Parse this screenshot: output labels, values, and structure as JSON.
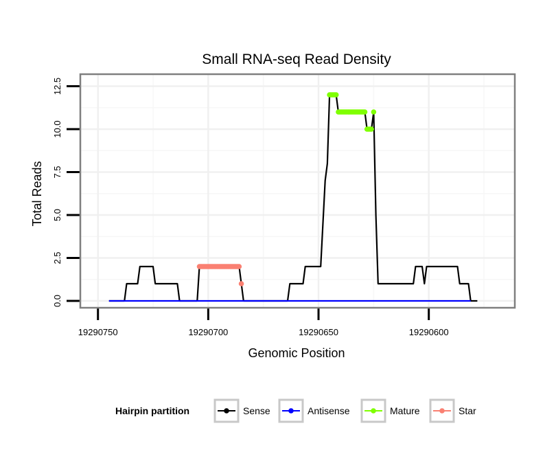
{
  "chart_data": {
    "type": "line",
    "title": "Small RNA-seq Read Density",
    "xlabel": "Genomic Position",
    "ylabel": "Total Reads",
    "xlim": [
      19290758,
      19290561
    ],
    "ylim": [
      -0.4,
      13.2
    ],
    "x_reversed": true,
    "x_ticks": [
      19290750,
      19290700,
      19290650,
      19290600
    ],
    "x_tick_labels": [
      "19290750",
      "19290700",
      "19290650",
      "19290600"
    ],
    "y_ticks": [
      0,
      2.5,
      5,
      7.5,
      10,
      12.5
    ],
    "y_tick_labels": [
      "0.0",
      "2.5",
      "5.0",
      "7.5",
      "10.0",
      "12.5"
    ],
    "grid": true,
    "legend": {
      "title": "Hairpin partition",
      "position": "bottom",
      "entries": [
        {
          "label": "Sense",
          "color": "#000000"
        },
        {
          "label": "Antisense",
          "color": "#0000ff"
        },
        {
          "label": "Mature",
          "color": "#7fff00"
        },
        {
          "label": "Star",
          "color": "#fa8072"
        }
      ]
    },
    "series": [
      {
        "name": "Sense",
        "color": "#000000",
        "style": "line",
        "points": [
          [
            19290745,
            0
          ],
          [
            19290738,
            0
          ],
          [
            19290737,
            1
          ],
          [
            19290732,
            1
          ],
          [
            19290731,
            2
          ],
          [
            19290725,
            2
          ],
          [
            19290724,
            1
          ],
          [
            19290714,
            1
          ],
          [
            19290713,
            0
          ],
          [
            19290705,
            0
          ],
          [
            19290704,
            2
          ],
          [
            19290686,
            2
          ],
          [
            19290685,
            1
          ],
          [
            19290684,
            0
          ],
          [
            19290664,
            0
          ],
          [
            19290663,
            1
          ],
          [
            19290657,
            1
          ],
          [
            19290656,
            2
          ],
          [
            19290649,
            2
          ],
          [
            19290647,
            7
          ],
          [
            19290646,
            8
          ],
          [
            19290645,
            12
          ],
          [
            19290642,
            12
          ],
          [
            19290641,
            11
          ],
          [
            19290629,
            11
          ],
          [
            19290628,
            10
          ],
          [
            19290626,
            10
          ],
          [
            19290625,
            11
          ],
          [
            19290624,
            5
          ],
          [
            19290623,
            1
          ],
          [
            19290607,
            1
          ],
          [
            19290606,
            2
          ],
          [
            19290603,
            2
          ],
          [
            19290602,
            1
          ],
          [
            19290601,
            2
          ],
          [
            19290587,
            2
          ],
          [
            19290586,
            1
          ],
          [
            19290582,
            1
          ],
          [
            19290581,
            0
          ],
          [
            19290578,
            0
          ]
        ]
      },
      {
        "name": "Antisense",
        "color": "#0000ff",
        "style": "line",
        "points": [
          [
            19290745,
            0
          ],
          [
            19290581,
            0
          ]
        ]
      },
      {
        "name": "Mature",
        "color": "#7fff00",
        "style": "points",
        "points": [
          [
            19290645,
            12
          ],
          [
            19290644.5,
            12
          ],
          [
            19290644,
            12
          ],
          [
            19290643.5,
            12
          ],
          [
            19290643,
            12
          ],
          [
            19290642.5,
            12
          ],
          [
            19290642,
            12
          ],
          [
            19290641,
            11
          ],
          [
            19290640.5,
            11
          ],
          [
            19290640,
            11
          ],
          [
            19290639.5,
            11
          ],
          [
            19290639,
            11
          ],
          [
            19290638.5,
            11
          ],
          [
            19290638,
            11
          ],
          [
            19290637.5,
            11
          ],
          [
            19290637,
            11
          ],
          [
            19290636.5,
            11
          ],
          [
            19290636,
            11
          ],
          [
            19290635.5,
            11
          ],
          [
            19290635,
            11
          ],
          [
            19290634.5,
            11
          ],
          [
            19290634,
            11
          ],
          [
            19290633.5,
            11
          ],
          [
            19290633,
            11
          ],
          [
            19290632.5,
            11
          ],
          [
            19290632,
            11
          ],
          [
            19290631.5,
            11
          ],
          [
            19290631,
            11
          ],
          [
            19290630.5,
            11
          ],
          [
            19290630,
            11
          ],
          [
            19290629.5,
            11
          ],
          [
            19290629,
            11
          ],
          [
            19290628,
            10
          ],
          [
            19290627.5,
            10
          ],
          [
            19290627,
            10
          ],
          [
            19290626.5,
            10
          ],
          [
            19290626,
            10
          ],
          [
            19290625,
            11
          ]
        ]
      },
      {
        "name": "Star",
        "color": "#fa8072",
        "style": "points",
        "points": [
          [
            19290704,
            2
          ],
          [
            19290703.5,
            2
          ],
          [
            19290703,
            2
          ],
          [
            19290702.5,
            2
          ],
          [
            19290702,
            2
          ],
          [
            19290701.5,
            2
          ],
          [
            19290701,
            2
          ],
          [
            19290700.5,
            2
          ],
          [
            19290700,
            2
          ],
          [
            19290699.5,
            2
          ],
          [
            19290699,
            2
          ],
          [
            19290698.5,
            2
          ],
          [
            19290698,
            2
          ],
          [
            19290697.5,
            2
          ],
          [
            19290697,
            2
          ],
          [
            19290696.5,
            2
          ],
          [
            19290696,
            2
          ],
          [
            19290695.5,
            2
          ],
          [
            19290695,
            2
          ],
          [
            19290694.5,
            2
          ],
          [
            19290694,
            2
          ],
          [
            19290693.5,
            2
          ],
          [
            19290693,
            2
          ],
          [
            19290692.5,
            2
          ],
          [
            19290692,
            2
          ],
          [
            19290691.5,
            2
          ],
          [
            19290691,
            2
          ],
          [
            19290690.5,
            2
          ],
          [
            19290690,
            2
          ],
          [
            19290689.5,
            2
          ],
          [
            19290689,
            2
          ],
          [
            19290688.5,
            2
          ],
          [
            19290688,
            2
          ],
          [
            19290687.5,
            2
          ],
          [
            19290687,
            2
          ],
          [
            19290686.5,
            2
          ],
          [
            19290686,
            2
          ],
          [
            19290685,
            1
          ]
        ]
      }
    ]
  }
}
